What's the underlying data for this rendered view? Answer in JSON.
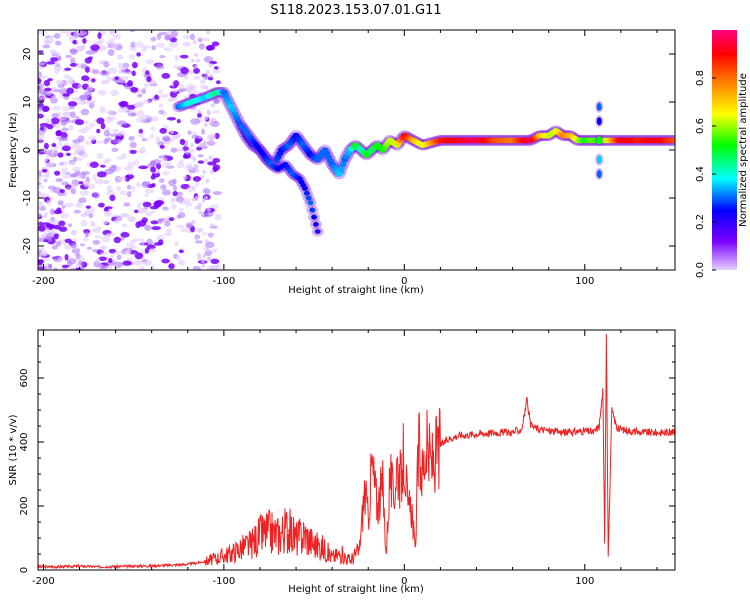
{
  "figure_title": "S118.2023.153.07.01.G11",
  "chart_data": [
    {
      "type": "heatmap",
      "title": "",
      "xlabel": "Height of straight line (km)",
      "ylabel": "Frequency (Hz)",
      "xlim": [
        -203,
        150
      ],
      "ylim": [
        -25,
        25
      ],
      "xticks": [
        -200,
        -100,
        0,
        100
      ],
      "yticks": [
        -20,
        -10,
        0,
        10,
        20
      ],
      "colorbar": {
        "label": "Normalized spectral amplitude",
        "range": [
          0,
          1
        ],
        "ticks": [
          "0.0",
          "0.2",
          "0.4",
          "0.6",
          "0.8"
        ],
        "colormap": [
          "#e6d0ff",
          "#7a00ff",
          "#0000ff",
          "#00ffff",
          "#00ff00",
          "#ffff00",
          "#ff8000",
          "#ff0000",
          "#ff0080"
        ]
      },
      "ridge": {
        "x": [
          -125,
          -118,
          -110,
          -104,
          -100,
          -96,
          -92,
          -88,
          -84,
          -80,
          -76,
          -72,
          -68,
          -64,
          -60,
          -56,
          -52,
          -48,
          -44,
          -40,
          -36,
          -33,
          -30,
          -27,
          -24,
          -21,
          -18,
          -15,
          -12,
          -8,
          -4,
          0,
          5,
          10,
          20,
          30,
          40,
          50,
          60,
          70,
          75,
          80,
          84,
          88,
          92,
          96,
          100,
          104,
          108,
          112,
          120,
          130,
          140,
          150
        ],
        "y": [
          9,
          10,
          11,
          12,
          12,
          9,
          6,
          3,
          1,
          0,
          -2,
          -3,
          0,
          1,
          3,
          1,
          -1,
          -2,
          0,
          -3,
          -5,
          -2,
          0,
          1,
          0,
          -1,
          0,
          1,
          0,
          2,
          1,
          3,
          2,
          1,
          2,
          2,
          2,
          2,
          2,
          2,
          3,
          3,
          4,
          3,
          3,
          2,
          2,
          2,
          2,
          2,
          2,
          2,
          2,
          2
        ],
        "amplitude": [
          0.3,
          0.4,
          0.35,
          0.45,
          0.3,
          0.35,
          0.3,
          0.25,
          0.25,
          0.3,
          0.25,
          0.3,
          0.25,
          0.3,
          0.25,
          0.3,
          0.25,
          0.3,
          0.3,
          0.3,
          0.35,
          0.3,
          0.35,
          0.5,
          0.4,
          0.5,
          0.45,
          0.5,
          0.5,
          0.6,
          0.6,
          0.9,
          0.7,
          0.6,
          0.85,
          0.9,
          0.95,
          0.8,
          0.75,
          0.95,
          0.7,
          0.6,
          0.6,
          0.75,
          0.7,
          0.6,
          0.5,
          0.55,
          0.5,
          0.6,
          0.9,
          0.85,
          0.9,
          0.8
        ]
      },
      "branch": {
        "x": [
          -90,
          -86,
          -82,
          -78,
          -74,
          -70,
          -66,
          -62,
          -58,
          -55,
          -52,
          -50,
          -48
        ],
        "y": [
          5,
          3,
          1,
          -1,
          -3,
          -4,
          -3,
          -5,
          -6,
          -8,
          -11,
          -14,
          -17
        ],
        "amplitude": [
          0.3,
          0.3,
          0.25,
          0.25,
          0.3,
          0.25,
          0.25,
          0.3,
          0.25,
          0.25,
          0.3,
          0.25,
          0.2
        ]
      },
      "spike": {
        "x": 108,
        "y": [
          9,
          6,
          2,
          -2,
          -5
        ],
        "amplitude": [
          0.3,
          0.25,
          0.5,
          0.35,
          0.3
        ]
      }
    },
    {
      "type": "line",
      "title": "",
      "xlabel": "Height of straight line (km)",
      "ylabel": "SNR (10 * v/v)",
      "xlim": [
        -203,
        150
      ],
      "ylim": [
        0,
        750
      ],
      "xticks": [
        -200,
        -100,
        0,
        100
      ],
      "yticks": [
        0,
        200,
        400,
        600
      ],
      "series": [
        {
          "color": "#ee2222",
          "x": [
            -203,
            -190,
            -180,
            -170,
            -160,
            -150,
            -140,
            -130,
            -120,
            -115,
            -110,
            -105,
            -100,
            -95,
            -90,
            -85,
            -80,
            -75,
            -70,
            -65,
            -60,
            -55,
            -50,
            -45,
            -40,
            -35,
            -30,
            -25,
            -22,
            -20,
            -18,
            -15,
            -12,
            -10,
            -8,
            -6,
            -4,
            -2,
            0,
            2,
            4,
            6,
            8,
            10,
            12,
            15,
            20,
            25,
            30,
            40,
            50,
            60,
            65,
            68,
            70,
            75,
            80,
            90,
            100,
            105,
            108,
            110,
            111,
            112,
            113,
            115,
            118,
            120,
            130,
            140,
            150
          ],
          "y": [
            10,
            10,
            12,
            10,
            11,
            12,
            13,
            15,
            18,
            22,
            28,
            35,
            45,
            55,
            70,
            80,
            110,
            120,
            110,
            130,
            100,
            110,
            80,
            70,
            40,
            50,
            30,
            60,
            250,
            160,
            330,
            200,
            260,
            50,
            300,
            220,
            340,
            270,
            370,
            180,
            200,
            60,
            390,
            300,
            380,
            330,
            390,
            410,
            420,
            425,
            430,
            430,
            440,
            530,
            450,
            440,
            435,
            430,
            435,
            430,
            450,
            560,
            90,
            740,
            40,
            500,
            440,
            440,
            430,
            430,
            430
          ]
        }
      ]
    }
  ]
}
